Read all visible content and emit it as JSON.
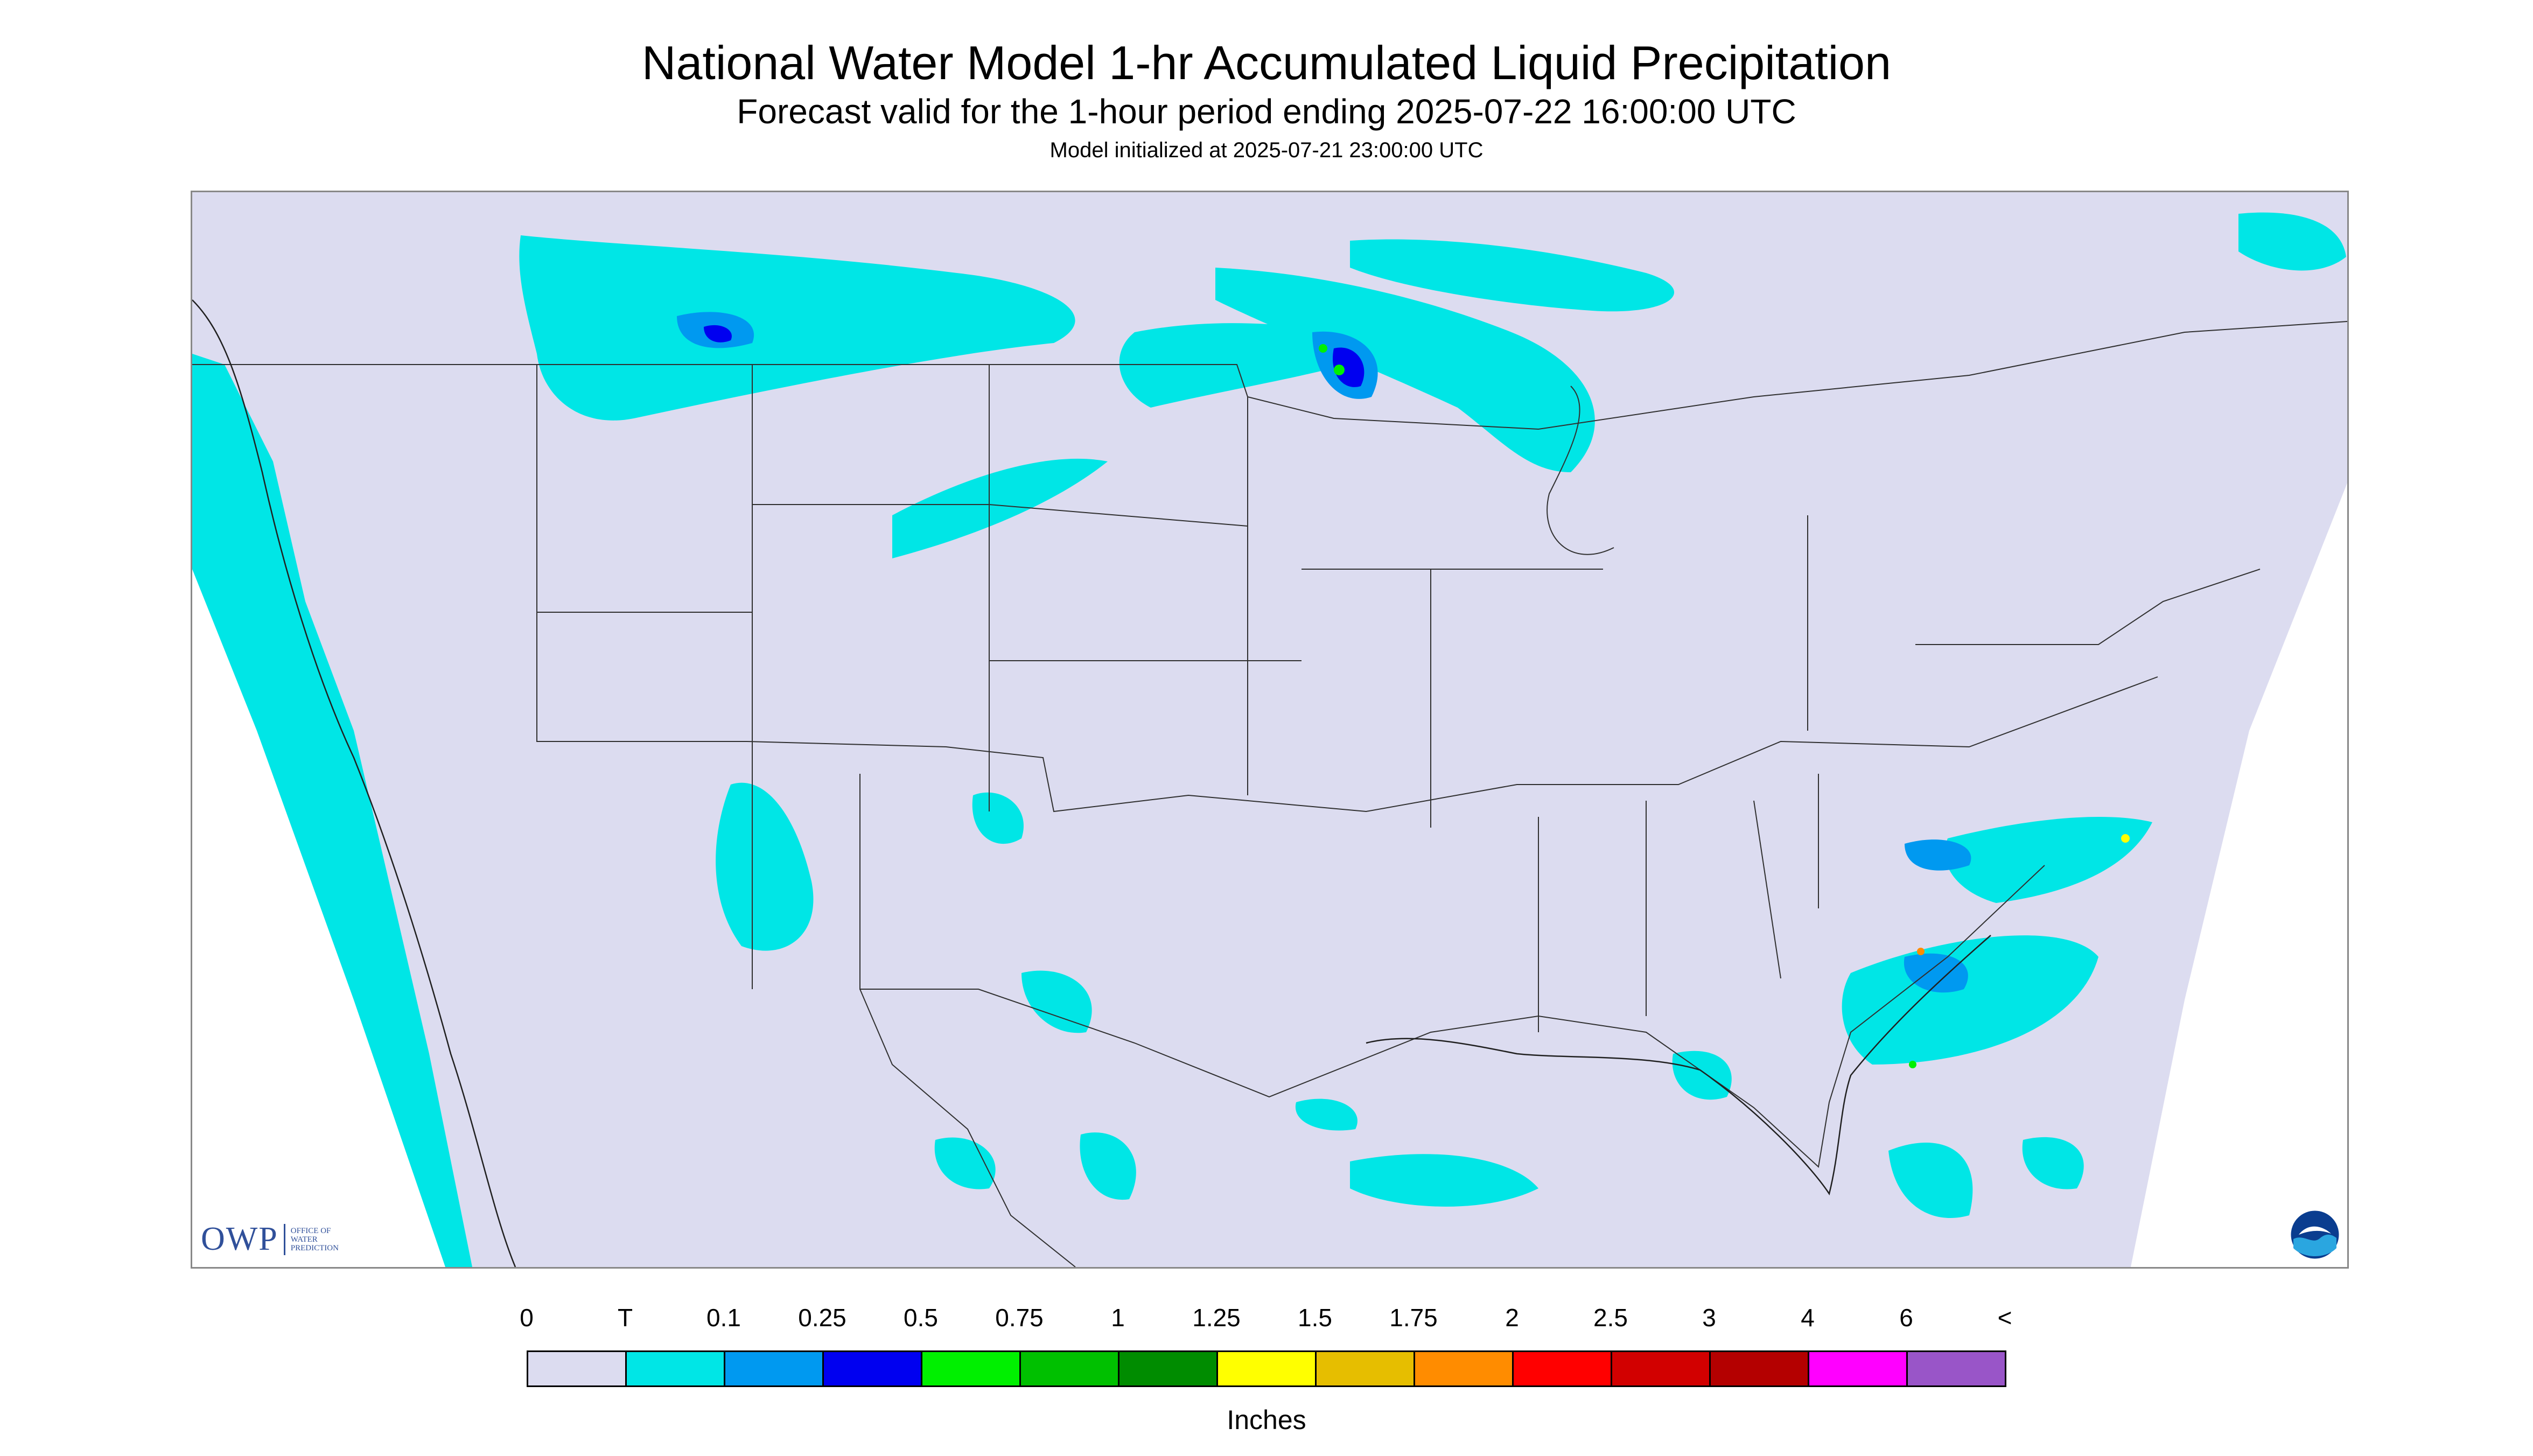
{
  "title": "National Water Model 1-hr Accumulated Liquid Precipitation",
  "subtitle": "Forecast valid for the 1-hour period ending 2025-07-22 16:00:00 UTC",
  "init_text": "Model initialized at 2025-07-21 23:00:00 UTC",
  "logo_owp": {
    "main": "OWP",
    "sub": "OFFICE OF WATER PREDICTION"
  },
  "logo_noaa": "NOAA",
  "legend": {
    "labels": [
      "0",
      "T",
      "0.1",
      "0.25",
      "0.5",
      "0.75",
      "1",
      "1.25",
      "1.5",
      "1.75",
      "2",
      "2.5",
      "3",
      "4",
      "6",
      "<"
    ],
    "colors": [
      "#dcdcf0",
      "#00e6e6",
      "#0099f0",
      "#0000f0",
      "#00f000",
      "#00c000",
      "#008c00",
      "#ffff00",
      "#e6be00",
      "#ff8c00",
      "#ff0000",
      "#d20000",
      "#b40000",
      "#ff00ff",
      "#9955c8"
    ],
    "units": "Inches"
  },
  "colors": {
    "no_precip": "#dcdcf0",
    "trace": "#00e6e6",
    "light": "#0099f0",
    "moderate": "#0000f0",
    "heavy_green": "#00f000",
    "heavy_yellow": "#ffff00",
    "heavy_orange": "#ff8c00",
    "border_lines": "#303030",
    "off_domain": "#ffffff"
  }
}
